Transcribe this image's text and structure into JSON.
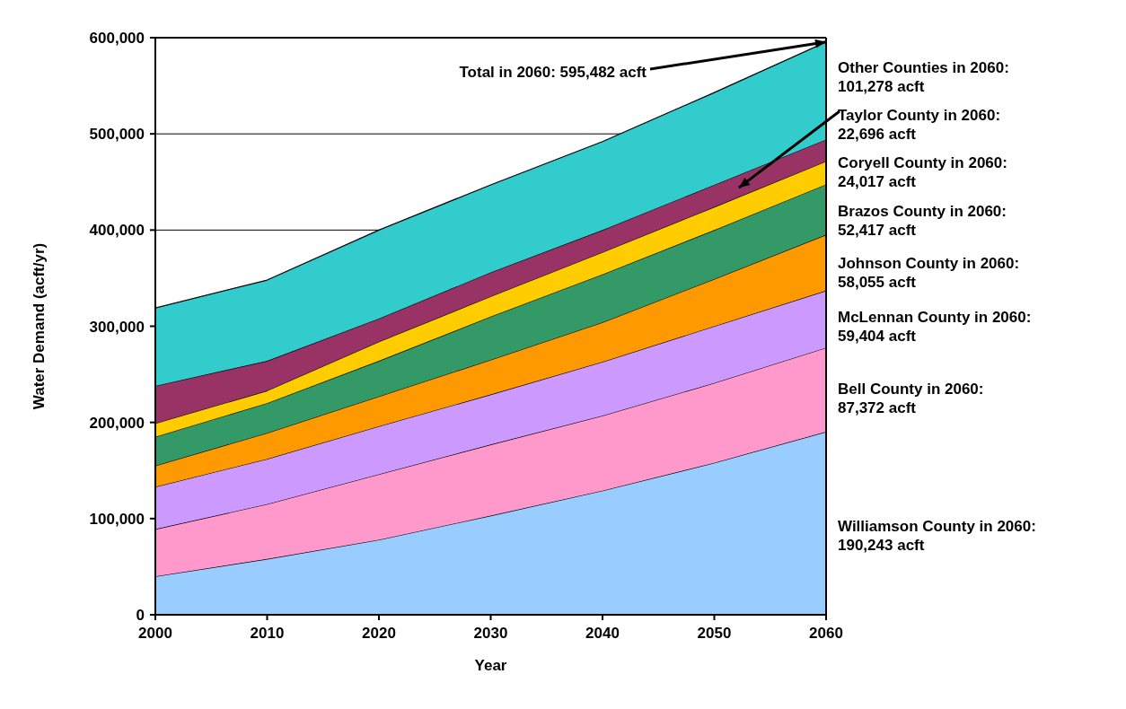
{
  "chart_data": {
    "type": "area",
    "stacked": true,
    "xlabel": "Year",
    "ylabel": "Water Demand (acft/yr)",
    "x": [
      2000,
      2010,
      2020,
      2030,
      2040,
      2050,
      2060
    ],
    "xlim": [
      2000,
      2060
    ],
    "xticks": [
      2000,
      2010,
      2020,
      2030,
      2040,
      2050,
      2060
    ],
    "ylim": [
      0,
      600000
    ],
    "yticks": [
      {
        "value": 0,
        "label": "0"
      },
      {
        "value": 100000,
        "label": "100,000"
      },
      {
        "value": 200000,
        "label": "200,000"
      },
      {
        "value": 300000,
        "label": "300,000"
      },
      {
        "value": 400000,
        "label": "400,000"
      },
      {
        "value": 500000,
        "label": "500,000"
      },
      {
        "value": 600000,
        "label": "600,000"
      }
    ],
    "grid": "y",
    "series": [
      {
        "color": "#99ccff",
        "values": [
          40000,
          58000,
          78000,
          103000,
          129000,
          158000,
          190243
        ]
      },
      {
        "color": "#ff99cc",
        "values": [
          49000,
          57000,
          68000,
          74000,
          78000,
          83000,
          87372
        ]
      },
      {
        "color": "#cc99ff",
        "values": [
          44000,
          47000,
          50000,
          52000,
          56000,
          59000,
          59404
        ]
      },
      {
        "color": "#ff9900",
        "values": [
          22000,
          27000,
          31000,
          36000,
          41000,
          49000,
          58055
        ]
      },
      {
        "color": "#339966",
        "values": [
          30000,
          31000,
          37000,
          45000,
          50000,
          51000,
          52417
        ]
      },
      {
        "color": "#ffcc00",
        "values": [
          14000,
          13000,
          20000,
          21000,
          23000,
          24000,
          24017
        ]
      },
      {
        "color": "#993366",
        "values": [
          39000,
          31000,
          24000,
          25000,
          23000,
          23000,
          22696
        ]
      },
      {
        "color": "#33cccc",
        "values": [
          81000,
          84000,
          92000,
          91000,
          92000,
          96000,
          101278
        ]
      }
    ],
    "annotations": [
      {
        "text": "Total in 2060: 595,482 acft",
        "x": 2060,
        "y": 595482
      },
      "Other Counties in 2060:\n101,278 acft",
      "Taylor County in 2060:\n22,696 acft",
      "Coryell County in 2060:\n24,017 acft",
      "Brazos County in 2060:\n52,417 acft",
      "Johnson County in 2060:\n58,055 acft",
      "McLennan County in 2060:\n59,404 acft",
      "Bell County in 2060:\n87,372 acft",
      "Williamson County in 2060:\n190,243 acft"
    ]
  }
}
